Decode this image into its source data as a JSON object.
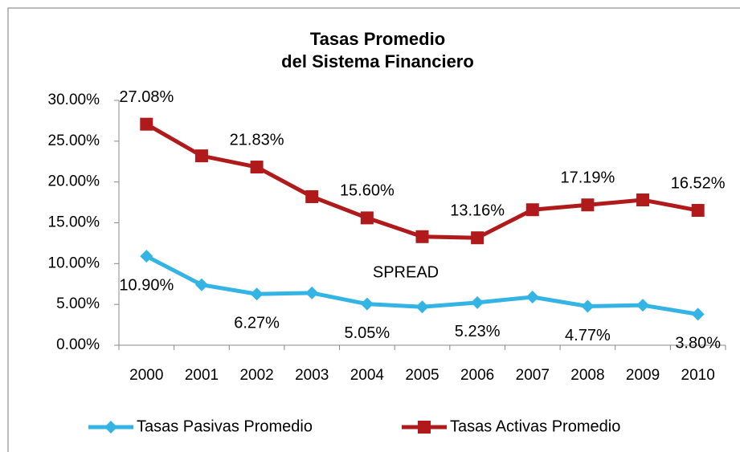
{
  "chart_data": {
    "type": "line",
    "title": "Tasas Promedio",
    "subtitle": "del Sistema Financiero",
    "annotations": [
      "SPREAD"
    ],
    "categories": [
      "2000",
      "2001",
      "2002",
      "2003",
      "2004",
      "2005",
      "2006",
      "2007",
      "2008",
      "2009",
      "2010"
    ],
    "series": [
      {
        "name": "Tasas Pasivas Promedio",
        "color": "#33b4e4",
        "marker": "diamond",
        "values": [
          10.9,
          7.4,
          6.27,
          6.4,
          5.05,
          4.7,
          5.23,
          5.9,
          4.77,
          4.9,
          3.8
        ],
        "value_labels": [
          "10.90%",
          null,
          "6.27%",
          null,
          "5.05%",
          null,
          "5.23%",
          null,
          "4.77%",
          null,
          "3.80%"
        ]
      },
      {
        "name": "Tasas Activas Promedio",
        "color": "#b01a1a",
        "marker": "square",
        "values": [
          27.08,
          23.2,
          21.83,
          18.2,
          15.6,
          13.3,
          13.16,
          16.6,
          17.19,
          17.8,
          16.52
        ],
        "value_labels": [
          "27.08%",
          null,
          "21.83%",
          null,
          "15.60%",
          null,
          "13.16%",
          null,
          "17.19%",
          null,
          "16.52%"
        ]
      }
    ],
    "ylim": [
      0,
      30
    ],
    "yticks": [
      {
        "value": 0,
        "label": "0.00%"
      },
      {
        "value": 5,
        "label": "5.00%"
      },
      {
        "value": 10,
        "label": "10.00%"
      },
      {
        "value": 15,
        "label": "15.00%"
      },
      {
        "value": 20,
        "label": "20.00%"
      },
      {
        "value": 25,
        "label": "25.00%"
      },
      {
        "value": 30,
        "label": "30.00%"
      }
    ],
    "grid": false,
    "legend": "bottom"
  }
}
